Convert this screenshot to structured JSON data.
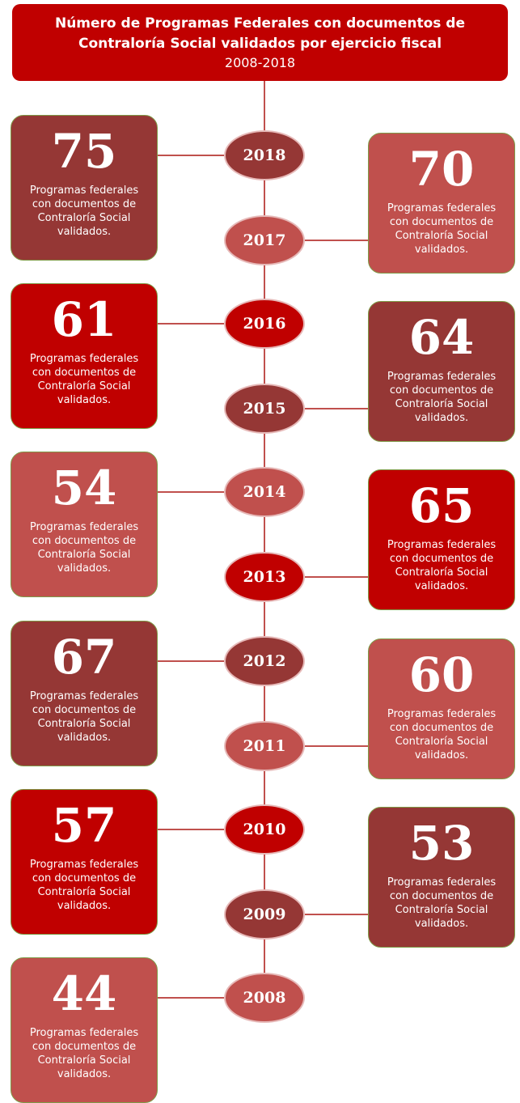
{
  "header": {
    "title": "Número de Programas Federales con documentos de Contraloría Social validados por ejercicio fiscal",
    "subtitle": "2008-2018"
  },
  "items": [
    {
      "year": "2018",
      "value": "75",
      "label": "Programas federales con documentos de Contraloría Social validados.",
      "side": "left",
      "color": "#953735"
    },
    {
      "year": "2017",
      "value": "70",
      "label": "Programas federales con documentos de Contraloría Social validados.",
      "side": "right",
      "color": "#c0504d"
    },
    {
      "year": "2016",
      "value": "61",
      "label": "Programas federales con documentos de Contraloría Social validados.",
      "side": "left",
      "color": "#c00000"
    },
    {
      "year": "2015",
      "value": "64",
      "label": "Programas federales con documentos de Contraloría Social validados.",
      "side": "right",
      "color": "#953735"
    },
    {
      "year": "2014",
      "value": "54",
      "label": "Programas federales con documentos de Contraloría Social validados.",
      "side": "left",
      "color": "#c0504d"
    },
    {
      "year": "2013",
      "value": "65",
      "label": "Programas federales con documentos de Contraloría Social validados.",
      "side": "right",
      "color": "#c00000"
    },
    {
      "year": "2012",
      "value": "67",
      "label": "Programas federales con documentos de Contraloría Social validados.",
      "side": "left",
      "color": "#953735"
    },
    {
      "year": "2011",
      "value": "60",
      "label": "Programas federales con documentos de Contraloría Social validados.",
      "side": "right",
      "color": "#c0504d"
    },
    {
      "year": "2010",
      "value": "57",
      "label": "Programas federales con documentos de Contraloría Social validados.",
      "side": "left",
      "color": "#c00000"
    },
    {
      "year": "2009",
      "value": "53",
      "label": "Programas federales con documentos de Contraloría Social validados.",
      "side": "right",
      "color": "#953735"
    },
    {
      "year": "2008",
      "value": "44",
      "label": "Programas federales con documentos de Contraloría Social validados.",
      "side": "left",
      "color": "#c0504d"
    }
  ]
}
